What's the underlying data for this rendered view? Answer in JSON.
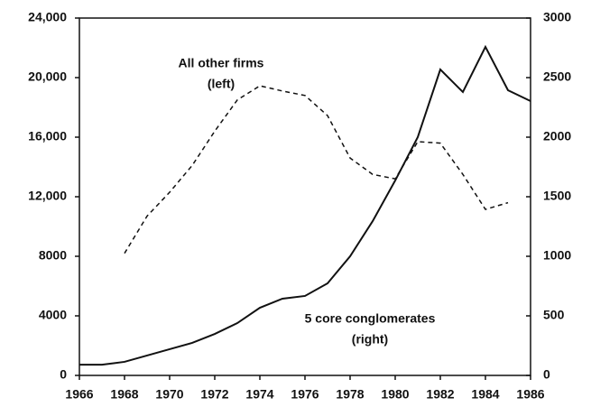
{
  "chart_data": {
    "type": "line",
    "x": [
      1966,
      1967,
      1968,
      1969,
      1970,
      1971,
      1972,
      1973,
      1974,
      1975,
      1976,
      1977,
      1978,
      1979,
      1980,
      1981,
      1982,
      1983,
      1984,
      1985,
      1986
    ],
    "xlim": [
      1966,
      1986
    ],
    "xticks": [
      1966,
      1968,
      1970,
      1972,
      1974,
      1976,
      1978,
      1980,
      1982,
      1984,
      1986
    ],
    "ylim": [
      0,
      24000
    ],
    "yticks": [
      0,
      4000,
      8000,
      {
        "value": 12000,
        "label": "12,000"
      },
      {
        "value": 16000,
        "label": "16,000"
      },
      {
        "value": 20000,
        "label": "20,000"
      },
      {
        "value": 24000,
        "label": "24,000"
      }
    ],
    "y2lim": [
      0,
      3000
    ],
    "y2ticks": [
      0,
      500,
      1000,
      1500,
      2000,
      2500,
      3000
    ],
    "series": [
      {
        "name": "All other firms",
        "color": "#111111",
        "axis": "y",
        "values": [
          null,
          null,
          8200,
          10700,
          12300,
          14100,
          16400,
          18500,
          19450,
          19100,
          18800,
          17450,
          14600,
          13500,
          13200,
          15700,
          15600,
          13500,
          11150,
          11600,
          null
        ]
      },
      {
        "name": "5 core conglomerates",
        "color": "#111111",
        "axis": "y2",
        "values": [
          90,
          90,
          114,
          167,
          220,
          273,
          348,
          439,
          568,
          644,
          667,
          773,
          1000,
          1295,
          1636,
          2000,
          2568,
          2379,
          2758,
          2394,
          2303
        ]
      }
    ],
    "annotations": [
      "All other firms",
      "(left)",
      "5 core conglomerates",
      "(right)"
    ]
  }
}
